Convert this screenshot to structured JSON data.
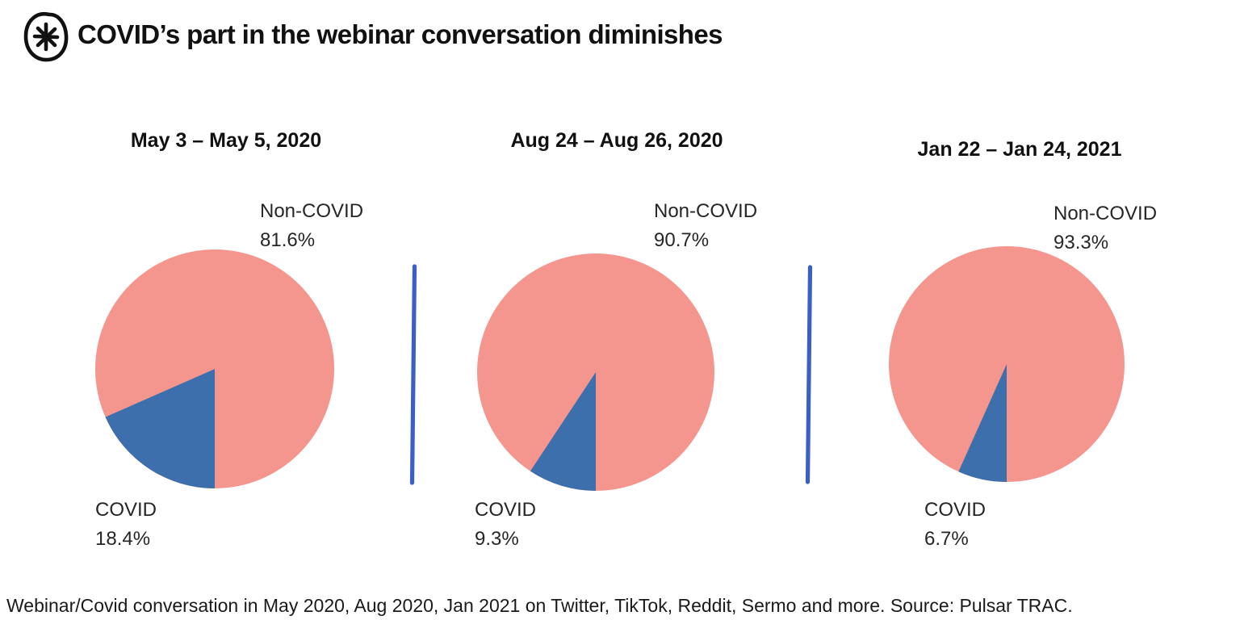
{
  "header": {
    "title": "COVID’s part in the webinar conversation diminishes",
    "logo_icon": "pulsar-asterisk-circle"
  },
  "colors": {
    "covid_blue": "#3d6fac",
    "non_covid_salmon": "#f5968e",
    "divider_blue": "#3b5fc5",
    "text_dark": "#111111"
  },
  "footer": {
    "caption": "Webinar/Covid conversation in May 2020, Aug 2020, Jan 2021 on Twitter, TikTok, Reddit, Sermo and more. Source: Pulsar TRAC."
  },
  "chart_data": [
    {
      "type": "pie",
      "title": "May 3 – May 5, 2020",
      "slices": [
        {
          "label": "Non-COVID",
          "value": 81.6,
          "display": "81.6%",
          "color": "#f5968e"
        },
        {
          "label": "COVID",
          "value": 18.4,
          "display": "18.4%",
          "color": "#3d6fac"
        }
      ],
      "layout_hints": {
        "covid_slice_start": "bottom",
        "direction": "clockwise",
        "legend": "callouts"
      }
    },
    {
      "type": "pie",
      "title": "Aug 24 – Aug 26, 2020",
      "slices": [
        {
          "label": "Non-COVID",
          "value": 90.7,
          "display": "90.7%",
          "color": "#f5968e"
        },
        {
          "label": "COVID",
          "value": 9.3,
          "display": "9.3%",
          "color": "#3d6fac"
        }
      ],
      "layout_hints": {
        "covid_slice_start": "bottom",
        "direction": "clockwise",
        "legend": "callouts"
      }
    },
    {
      "type": "pie",
      "title": "Jan 22 – Jan 24, 2021",
      "slices": [
        {
          "label": "Non-COVID",
          "value": 93.3,
          "display": "93.3%",
          "color": "#f5968e"
        },
        {
          "label": "COVID",
          "value": 6.7,
          "display": "6.7%",
          "color": "#3d6fac"
        }
      ],
      "layout_hints": {
        "covid_slice_start": "bottom",
        "direction": "clockwise",
        "legend": "callouts"
      }
    }
  ]
}
